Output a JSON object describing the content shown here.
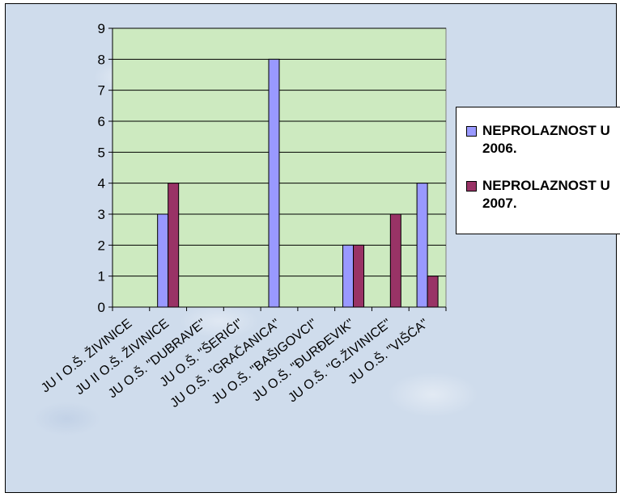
{
  "chart_data": {
    "type": "bar",
    "title": "",
    "xlabel": "",
    "ylabel": "",
    "ylim": [
      0,
      9
    ],
    "yticks": [
      "0",
      "1",
      "2",
      "3",
      "4",
      "5",
      "6",
      "7",
      "8",
      "9"
    ],
    "grid": true,
    "legend_position": "right",
    "plot_background": "#cdeac0",
    "categories": [
      "JU I O.Š. ŽIVINICE",
      "JU II O.Š. ŽIVINICE",
      "JU O.Š. \"DUBRAVE\"",
      "JU O.Š. \"ŠERIĆI\"",
      "JU O.Š. \"GRAČANICA\"",
      "JU O.Š. \"BAŠIGOVCI\"",
      "JU O.Š. \"ĐURĐEVIK\"",
      "JU O.Š. \"G.ŽIVINICE\"",
      "JU O.Š. \"VIŠĆA\""
    ],
    "tick_labels": [
      "JU I O.Š. ŽIVINICE",
      "JU II O.Š. ŽIVINICE",
      "JU O.Š. \"DUBRAVE\"",
      "JU O.Š. \"ŠERIĆI\"",
      "JU O.Š. \"GRAČANICA\"",
      "JU O.Š. \"BAŠIGOVCI\"",
      "JU O.Š. \"ĐURĐEVIK\"",
      "JU O.Š. \"G.ŽIVINICE\"",
      "JU O.Š. \"VIŠĆA\""
    ],
    "series": [
      {
        "name": "NEPROLAZNOST U 2006.",
        "color": "#9999ff",
        "values": [
          0,
          3,
          0,
          0,
          8,
          0,
          2,
          0,
          4
        ]
      },
      {
        "name": "NEPROLAZNOST U 2007.",
        "color": "#993366",
        "values": [
          0,
          4,
          0,
          0,
          0,
          0,
          2,
          3,
          1
        ]
      }
    ]
  }
}
